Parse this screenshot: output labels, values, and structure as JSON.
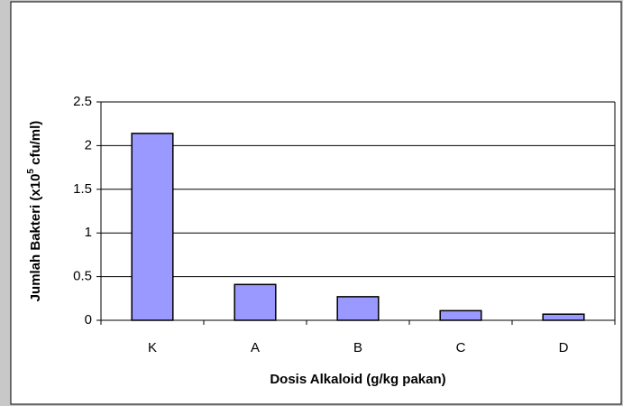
{
  "chart_data": {
    "type": "bar",
    "x_label": "Dosis Alkaloid (g/kg pakan)",
    "y_label": [
      "Jumlah  Bakteri (x10",
      "5",
      " cfu/ml)"
    ],
    "categories": [
      "K",
      "A",
      "B",
      "C",
      "D"
    ],
    "values": [
      2.14,
      0.41,
      0.27,
      0.11,
      0.07
    ],
    "color": "#9999ff",
    "ylim": [
      0,
      2.5
    ],
    "yticks": [
      0,
      0.5,
      1,
      1.5,
      2,
      2.5
    ],
    "grid": true
  }
}
